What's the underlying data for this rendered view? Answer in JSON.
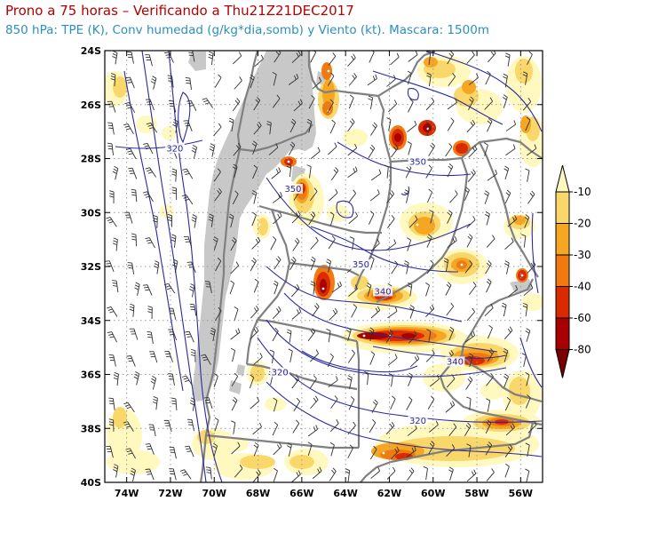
{
  "header": {
    "title": "Prono a 75 horas – Verificando a Thu21Z21DEC2017",
    "subtitle": "850 hPa: TPE (K), Conv humedad (g/kg*dia,somb) y Viento (kt). Mascara: 1500m"
  },
  "axes": {
    "lon_labels": [
      "74W",
      "72W",
      "70W",
      "68W",
      "66W",
      "64W",
      "62W",
      "60W",
      "58W",
      "56W"
    ],
    "lat_labels": [
      "24S",
      "26S",
      "28S",
      "30S",
      "32S",
      "34S",
      "36S",
      "38S",
      "40S"
    ]
  },
  "contour_labels": [
    {
      "text": "320",
      "lon": -71.8,
      "lat": -27.7
    },
    {
      "text": "350",
      "lon": -60.7,
      "lat": -28.2
    },
    {
      "text": "350",
      "lon": -66.4,
      "lat": -29.2
    },
    {
      "text": "350",
      "lon": -63.3,
      "lat": -32.0
    },
    {
      "text": "340",
      "lon": -62.3,
      "lat": -33.0
    },
    {
      "text": "340",
      "lon": -59.0,
      "lat": -35.6
    },
    {
      "text": "320",
      "lon": -67.0,
      "lat": -36.0
    },
    {
      "text": "320",
      "lon": -60.7,
      "lat": -37.8
    }
  ],
  "legend": {
    "labels": [
      "-10",
      "-20",
      "-30",
      "-40",
      "-60",
      "-80"
    ],
    "colors": [
      "#fff9c0",
      "#f9d76b",
      "#f5a623",
      "#f07a10",
      "#d92a00",
      "#a80000",
      "#7a0000"
    ]
  },
  "colors": {
    "mask": "#c8c8c8",
    "contour": "#2a2aa0",
    "boundary": "#808080",
    "wind": "#303030",
    "title": "#b40000",
    "subtitle": "#2a8fbf"
  }
}
